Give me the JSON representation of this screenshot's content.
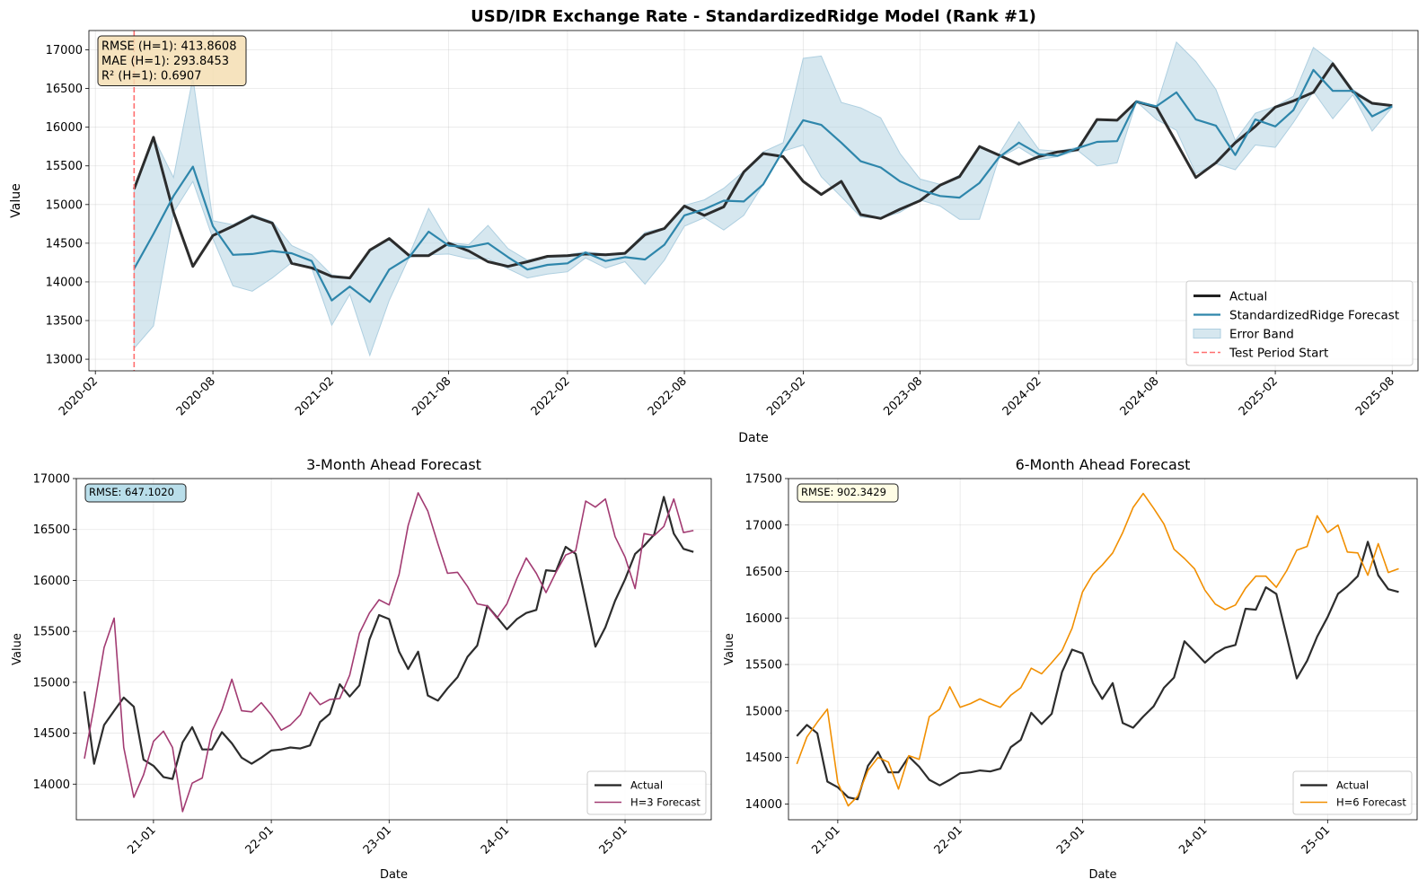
{
  "chart_data": [
    {
      "type": "line",
      "title": "USD/IDR Exchange Rate - StandardizedRidge Model (Rank #1)",
      "xlabel": "Date",
      "ylabel": "Value",
      "xlim": [
        "2020-01-22",
        "2025-09-10"
      ],
      "ylim": [
        12850,
        17250
      ],
      "yticks": [
        13000,
        13500,
        14000,
        14500,
        15000,
        15500,
        16000,
        16500,
        17000
      ],
      "xticks": [
        "2020-02",
        "2020-08",
        "2021-02",
        "2021-08",
        "2022-02",
        "2022-08",
        "2023-02",
        "2023-08",
        "2024-02",
        "2024-08",
        "2025-02",
        "2025-08"
      ],
      "grid": true,
      "legend_position": "lower right",
      "dates": [
        "2020-04",
        "2020-05",
        "2020-06",
        "2020-07",
        "2020-08",
        "2020-09",
        "2020-10",
        "2020-11",
        "2020-12",
        "2021-01",
        "2021-02",
        "2021-03",
        "2021-04",
        "2021-05",
        "2021-06",
        "2021-07",
        "2021-08",
        "2021-09",
        "2021-10",
        "2021-11",
        "2021-12",
        "2022-01",
        "2022-02",
        "2022-03",
        "2022-04",
        "2022-05",
        "2022-06",
        "2022-07",
        "2022-08",
        "2022-09",
        "2022-10",
        "2022-11",
        "2022-12",
        "2023-01",
        "2023-02",
        "2023-03",
        "2023-04",
        "2023-05",
        "2023-06",
        "2023-07",
        "2023-08",
        "2023-09",
        "2023-10",
        "2023-11",
        "2023-12",
        "2024-01",
        "2024-02",
        "2024-03",
        "2024-04",
        "2024-05",
        "2024-06",
        "2024-07",
        "2024-08",
        "2024-09",
        "2024-10",
        "2024-11",
        "2024-12",
        "2025-01",
        "2025-02",
        "2025-03",
        "2025-04",
        "2025-05",
        "2025-06",
        "2025-07",
        "2025-08"
      ],
      "series": [
        {
          "name": "Actual",
          "color": "#222222",
          "values": [
            15200,
            15870,
            14900,
            14200,
            14600,
            14720,
            14850,
            14760,
            14240,
            14180,
            14070,
            14050,
            14410,
            14560,
            14340,
            14340,
            14500,
            14400,
            14260,
            14200,
            14260,
            14330,
            14340,
            14360,
            14350,
            14370,
            14610,
            14690,
            14980,
            14860,
            14970,
            15420,
            15660,
            15620,
            15300,
            15130,
            15300,
            14870,
            14820,
            14940,
            15050,
            15250,
            15360,
            15750,
            15640,
            15520,
            15620,
            15680,
            15710,
            16100,
            16090,
            16330,
            16260,
            15800,
            15350,
            15540,
            15800,
            16010,
            16260,
            16340,
            16450,
            16820,
            16460,
            16310,
            16280
          ]
        },
        {
          "name": "StandardizedRidge Forecast",
          "color": "#2e86ab",
          "values": [
            14170,
            14620,
            15110,
            15490,
            14720,
            14350,
            14360,
            14400,
            14370,
            14270,
            13760,
            13940,
            13740,
            14160,
            14320,
            14650,
            14470,
            14450,
            14500,
            14320,
            14160,
            14220,
            14240,
            14380,
            14270,
            14320,
            14290,
            14480,
            14860,
            14940,
            15050,
            15040,
            15260,
            15700,
            16090,
            16030,
            15800,
            15560,
            15480,
            15300,
            15190,
            15110,
            15090,
            15280,
            15610,
            15800,
            15650,
            15630,
            15730,
            15810,
            15820,
            16330,
            16270,
            16450,
            16100,
            16020,
            15640,
            16100,
            16010,
            16220,
            16740,
            16470,
            16470,
            16140,
            16270
          ]
        },
        {
          "name": "Error Band",
          "color": "#aecfe0",
          "type": "area",
          "lower": [
            13140,
            13430,
            14900,
            15300,
            14560,
            13950,
            13880,
            14050,
            14250,
            14180,
            13440,
            13840,
            13050,
            13760,
            14320,
            14350,
            14360,
            14300,
            14300,
            14170,
            14050,
            14100,
            14130,
            14310,
            14180,
            14260,
            13970,
            14280,
            14720,
            14830,
            14670,
            14860,
            15260,
            15690,
            15770,
            15360,
            15100,
            14840,
            14820,
            14900,
            15060,
            14980,
            14810,
            14810,
            15600,
            15740,
            15580,
            15620,
            15700,
            15500,
            15540,
            16330,
            16100,
            15960,
            15400,
            15530,
            15450,
            15770,
            15740,
            16060,
            16460,
            16110,
            16420,
            15950,
            16260
          ],
          "upper": [
            15200,
            15870,
            15350,
            16640,
            14790,
            14740,
            14870,
            14780,
            14470,
            14350,
            14090,
            14060,
            14400,
            14570,
            14350,
            14950,
            14510,
            14480,
            14730,
            14430,
            14280,
            14340,
            14350,
            14390,
            14360,
            14380,
            14640,
            14700,
            14990,
            15060,
            15210,
            15430,
            15680,
            15800,
            16890,
            16920,
            16320,
            16250,
            16120,
            15660,
            15330,
            15260,
            15380,
            15760,
            15650,
            16070,
            15710,
            15690,
            15740,
            16100,
            16090,
            16340,
            16270,
            17100,
            16850,
            16490,
            15830,
            16180,
            16270,
            16400,
            17030,
            16840,
            16490,
            16320,
            16290
          ]
        },
        {
          "name": "Test Period Start",
          "color": "#ff6f6f",
          "type": "vline",
          "x": "2020-04"
        }
      ],
      "annotations": [
        "RMSE (H=1): 413.8608",
        "MAE (H=1): 293.8453",
        "R² (H=1): 0.6907"
      ]
    },
    {
      "type": "line",
      "title": "3-Month Ahead Forecast",
      "xlabel": "Date",
      "ylabel": "Value",
      "xlim": [
        "2020-05-07",
        "2025-09-25"
      ],
      "ylim": [
        13650,
        17000
      ],
      "yticks": [
        14000,
        14500,
        15000,
        15500,
        16000,
        16500,
        17000
      ],
      "xticks": [
        "21-01",
        "22-01",
        "23-01",
        "24-01",
        "25-01"
      ],
      "grid": true,
      "legend_position": "lower right",
      "dates": [
        "2020-06",
        "2020-07",
        "2020-08",
        "2020-09",
        "2020-10",
        "2020-11",
        "2020-12",
        "2021-01",
        "2021-02",
        "2021-03",
        "2021-04",
        "2021-05",
        "2021-06",
        "2021-07",
        "2021-08",
        "2021-09",
        "2021-10",
        "2021-11",
        "2021-12",
        "2022-01",
        "2022-02",
        "2022-03",
        "2022-04",
        "2022-05",
        "2022-06",
        "2022-07",
        "2022-08",
        "2022-09",
        "2022-10",
        "2022-11",
        "2022-12",
        "2023-01",
        "2023-02",
        "2023-03",
        "2023-04",
        "2023-05",
        "2023-06",
        "2023-07",
        "2023-08",
        "2023-09",
        "2023-10",
        "2023-11",
        "2023-12",
        "2024-01",
        "2024-02",
        "2024-03",
        "2024-04",
        "2024-05",
        "2024-06",
        "2024-07",
        "2024-08",
        "2024-09",
        "2024-10",
        "2024-11",
        "2024-12",
        "2025-01",
        "2025-02",
        "2025-03",
        "2025-04",
        "2025-05",
        "2025-06",
        "2025-07",
        "2025-08"
      ],
      "series": [
        {
          "name": "Actual",
          "color": "#222222",
          "values": [
            14910,
            14200,
            14580,
            14720,
            14850,
            14760,
            14240,
            14180,
            14070,
            14050,
            14410,
            14560,
            14340,
            14340,
            14510,
            14400,
            14260,
            14200,
            14260,
            14330,
            14340,
            14360,
            14350,
            14380,
            14610,
            14690,
            14980,
            14860,
            14970,
            15420,
            15660,
            15620,
            15300,
            15130,
            15300,
            14870,
            14820,
            14940,
            15050,
            15250,
            15360,
            15750,
            15640,
            15520,
            15620,
            15680,
            15710,
            16100,
            16090,
            16330,
            16260,
            15800,
            15350,
            15540,
            15800,
            16010,
            16260,
            16340,
            16450,
            16820,
            16460,
            16310,
            16280
          ]
        },
        {
          "name": "H=3 Forecast",
          "color": "#a23b72",
          "values": [
            14250,
            14760,
            15340,
            15630,
            14360,
            13870,
            14090,
            14420,
            14520,
            14360,
            13730,
            14010,
            14060,
            14520,
            14730,
            15030,
            14720,
            14710,
            14800,
            14680,
            14530,
            14580,
            14680,
            14900,
            14780,
            14830,
            14840,
            15070,
            15480,
            15680,
            15810,
            15760,
            16060,
            16540,
            16860,
            16680,
            16360,
            16070,
            16080,
            15940,
            15770,
            15750,
            15630,
            15770,
            16020,
            16220,
            16070,
            15880,
            16080,
            16250,
            16290,
            16780,
            16720,
            16800,
            16430,
            16230,
            15920,
            16460,
            16440,
            16530,
            16800,
            16470,
            16490
          ]
        }
      ],
      "annotations": [
        "RMSE: 647.1020"
      ]
    },
    {
      "type": "line",
      "title": "6-Month Ahead Forecast",
      "xlabel": "Date",
      "ylabel": "Value",
      "xlim": [
        "2020-08-07",
        "2025-09-25"
      ],
      "ylim": [
        13830,
        17500
      ],
      "yticks": [
        14000,
        14500,
        15000,
        15500,
        16000,
        16500,
        17000,
        17500
      ],
      "xticks": [
        "21-01",
        "22-01",
        "23-01",
        "24-01",
        "25-01"
      ],
      "grid": true,
      "legend_position": "lower right",
      "dates": [
        "2020-09",
        "2020-10",
        "2020-11",
        "2020-12",
        "2021-01",
        "2021-02",
        "2021-03",
        "2021-04",
        "2021-05",
        "2021-06",
        "2021-07",
        "2021-08",
        "2021-09",
        "2021-10",
        "2021-11",
        "2021-12",
        "2022-01",
        "2022-02",
        "2022-03",
        "2022-04",
        "2022-05",
        "2022-06",
        "2022-07",
        "2022-08",
        "2022-09",
        "2022-10",
        "2022-11",
        "2022-12",
        "2023-01",
        "2023-02",
        "2023-03",
        "2023-04",
        "2023-05",
        "2023-06",
        "2023-07",
        "2023-08",
        "2023-09",
        "2023-10",
        "2023-11",
        "2023-12",
        "2024-01",
        "2024-02",
        "2024-03",
        "2024-04",
        "2024-05",
        "2024-06",
        "2024-07",
        "2024-08",
        "2024-09",
        "2024-10",
        "2024-11",
        "2024-12",
        "2025-01",
        "2025-02",
        "2025-03",
        "2025-04",
        "2025-05",
        "2025-06",
        "2025-07",
        "2025-08"
      ],
      "series": [
        {
          "name": "Actual",
          "color": "#222222",
          "values": [
            14730,
            14850,
            14760,
            14240,
            14180,
            14070,
            14050,
            14410,
            14560,
            14340,
            14340,
            14510,
            14400,
            14260,
            14200,
            14260,
            14330,
            14340,
            14360,
            14350,
            14380,
            14610,
            14690,
            14980,
            14860,
            14970,
            15420,
            15660,
            15620,
            15300,
            15130,
            15300,
            14870,
            14820,
            14940,
            15050,
            15250,
            15360,
            15750,
            15640,
            15520,
            15620,
            15680,
            15710,
            16100,
            16090,
            16330,
            16260,
            15800,
            15350,
            15540,
            15800,
            16010,
            16260,
            16340,
            16450,
            16820,
            16460,
            16310,
            16280
          ]
        },
        {
          "name": "H=6 Forecast",
          "color": "#f18f01",
          "values": [
            14430,
            14720,
            14880,
            15020,
            14230,
            13980,
            14080,
            14360,
            14500,
            14450,
            14160,
            14520,
            14480,
            14940,
            15020,
            15260,
            15040,
            15080,
            15130,
            15080,
            15040,
            15170,
            15250,
            15460,
            15400,
            15520,
            15650,
            15890,
            16280,
            16470,
            16570,
            16700,
            16920,
            17190,
            17340,
            17180,
            17010,
            16740,
            16640,
            16530,
            16300,
            16150,
            16090,
            16140,
            16320,
            16450,
            16450,
            16330,
            16510,
            16730,
            16770,
            17100,
            16920,
            17000,
            16710,
            16700,
            16460,
            16800,
            16490,
            16530
          ]
        }
      ],
      "annotations": [
        "RMSE: 902.3429"
      ]
    }
  ],
  "legends": [
    [
      "Actual",
      "StandardizedRidge Forecast",
      "Error Band",
      "Test Period Start"
    ],
    [
      "Actual",
      "H=3 Forecast"
    ],
    [
      "Actual",
      "H=6 Forecast"
    ]
  ],
  "annotation_box_colors": [
    "#f5deb3",
    "#add8e6",
    "#fffde0"
  ]
}
